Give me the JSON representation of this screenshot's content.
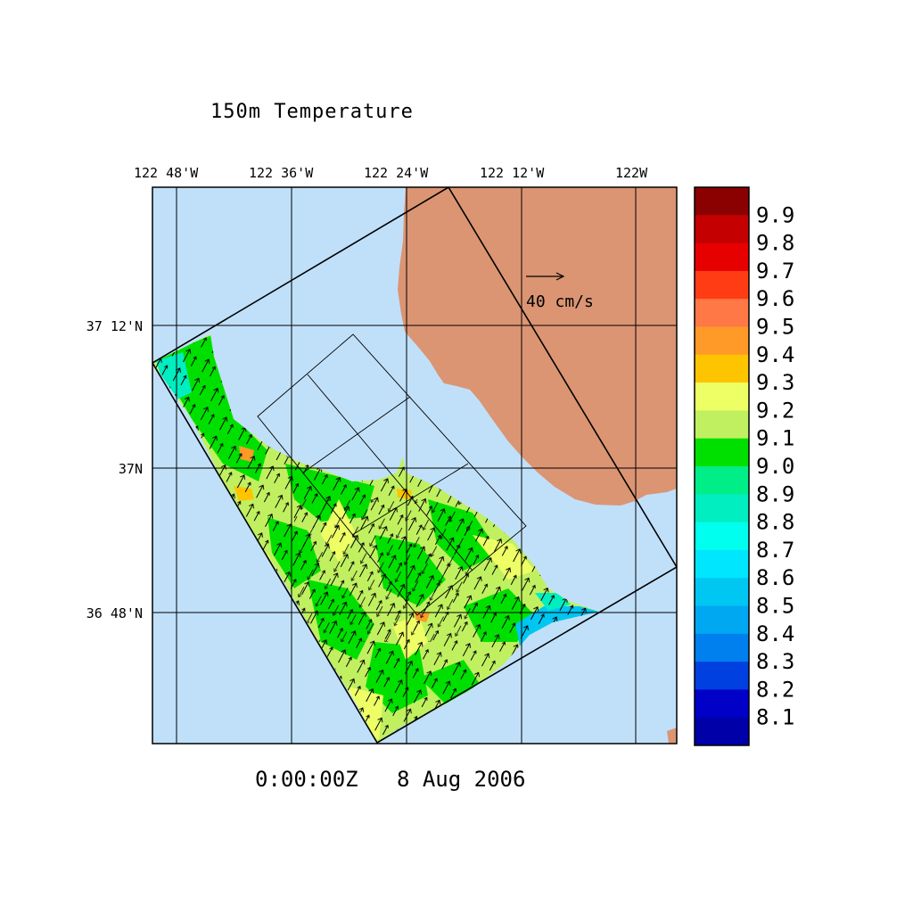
{
  "title": "150m Temperature",
  "timestamp": "0:00:00Z   8 Aug 2006",
  "reference_vector": {
    "label": "40 cm/s"
  },
  "map": {
    "lon_labels": [
      "122 48'W",
      "122 36'W",
      "122 24'W",
      "122 12'W",
      "122W"
    ],
    "lat_labels": [
      "37 12'N",
      "37N",
      "36 48'N"
    ],
    "colors": {
      "ocean": "#c0e0fa",
      "land": "#db9573",
      "grid": "#000000"
    }
  },
  "colorbar": {
    "labels": [
      "9.9",
      "9.8",
      "9.7",
      "9.6",
      "9.5",
      "9.4",
      "9.3",
      "9.2",
      "9.1",
      "9.0",
      "8.9",
      "8.8",
      "8.7",
      "8.6",
      "8.5",
      "8.4",
      "8.3",
      "8.2",
      "8.1"
    ],
    "colors": [
      "#8b0000",
      "#c40000",
      "#e60000",
      "#ff3c14",
      "#ff7846",
      "#ff9a28",
      "#ffc400",
      "#eeff66",
      "#c0f060",
      "#00e000",
      "#00ee88",
      "#00eec0",
      "#00ffee",
      "#00e6ff",
      "#00c6f2",
      "#00a8f2",
      "#0080ee",
      "#0040e0",
      "#0000c8",
      "#0000a8"
    ]
  }
}
